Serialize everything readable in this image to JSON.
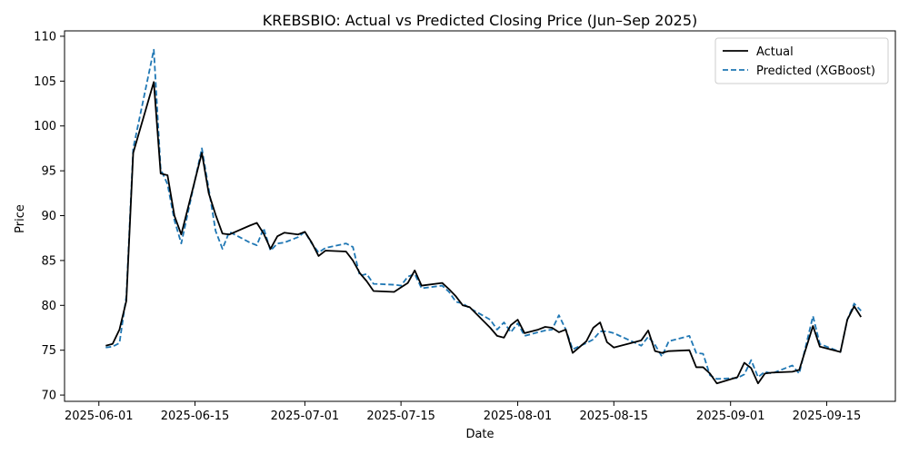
{
  "chart_data": {
    "type": "line",
    "title": "KREBSBIO: Actual vs Predicted Closing Price (Jun–Sep 2025)",
    "xlabel": "Date",
    "ylabel": "Price",
    "xlim": [
      "2025-05-27",
      "2025-09-25"
    ],
    "ylim": [
      69.3,
      110.6
    ],
    "x_ticks": [
      "2025-06-01",
      "2025-06-15",
      "2025-07-01",
      "2025-07-15",
      "2025-08-01",
      "2025-08-15",
      "2025-09-01",
      "2025-09-15"
    ],
    "y_ticks": [
      70,
      75,
      80,
      85,
      90,
      95,
      100,
      105,
      110
    ],
    "grid": false,
    "legend": "top-right",
    "series": [
      {
        "name": "Actual",
        "color": "#000000",
        "style": "solid",
        "points": [
          [
            "2025-06-02",
            75.5
          ],
          [
            "2025-06-03",
            75.7
          ],
          [
            "2025-06-04",
            77.3
          ],
          [
            "2025-06-05",
            80.5
          ],
          [
            "2025-06-06",
            97.0
          ],
          [
            "2025-06-09",
            104.9
          ],
          [
            "2025-06-10",
            94.7
          ],
          [
            "2025-06-11",
            94.5
          ],
          [
            "2025-06-12",
            90.0
          ],
          [
            "2025-06-13",
            87.9
          ],
          [
            "2025-06-16",
            97.0
          ],
          [
            "2025-06-17",
            92.5
          ],
          [
            "2025-06-18",
            90.1
          ],
          [
            "2025-06-19",
            88.0
          ],
          [
            "2025-06-20",
            87.9
          ],
          [
            "2025-06-23",
            88.9
          ],
          [
            "2025-06-24",
            89.2
          ],
          [
            "2025-06-25",
            88.0
          ],
          [
            "2025-06-26",
            86.3
          ],
          [
            "2025-06-27",
            87.7
          ],
          [
            "2025-06-28",
            88.1
          ],
          [
            "2025-06-30",
            87.9
          ],
          [
            "2025-07-01",
            88.2
          ],
          [
            "2025-07-02",
            87.0
          ],
          [
            "2025-07-03",
            85.5
          ],
          [
            "2025-07-04",
            86.1
          ],
          [
            "2025-07-07",
            86.0
          ],
          [
            "2025-07-08",
            85.0
          ],
          [
            "2025-07-09",
            83.6
          ],
          [
            "2025-07-10",
            82.7
          ],
          [
            "2025-07-11",
            81.6
          ],
          [
            "2025-07-14",
            81.5
          ],
          [
            "2025-07-15",
            82.0
          ],
          [
            "2025-07-16",
            82.5
          ],
          [
            "2025-07-17",
            83.9
          ],
          [
            "2025-07-18",
            82.2
          ],
          [
            "2025-07-21",
            82.5
          ],
          [
            "2025-07-22",
            81.8
          ],
          [
            "2025-07-23",
            81.0
          ],
          [
            "2025-07-24",
            80.0
          ],
          [
            "2025-07-25",
            79.8
          ],
          [
            "2025-07-28",
            77.5
          ],
          [
            "2025-07-29",
            76.6
          ],
          [
            "2025-07-30",
            76.4
          ],
          [
            "2025-07-31",
            77.8
          ],
          [
            "2025-08-01",
            78.4
          ],
          [
            "2025-08-02",
            76.9
          ],
          [
            "2025-08-04",
            77.3
          ],
          [
            "2025-08-05",
            77.6
          ],
          [
            "2025-08-06",
            77.5
          ],
          [
            "2025-08-07",
            77.0
          ],
          [
            "2025-08-08",
            77.3
          ],
          [
            "2025-08-09",
            74.7
          ],
          [
            "2025-08-11",
            76.0
          ],
          [
            "2025-08-12",
            77.5
          ],
          [
            "2025-08-13",
            78.1
          ],
          [
            "2025-08-14",
            75.9
          ],
          [
            "2025-08-15",
            75.3
          ],
          [
            "2025-08-19",
            76.1
          ],
          [
            "2025-08-20",
            77.2
          ],
          [
            "2025-08-21",
            74.9
          ],
          [
            "2025-08-22",
            74.7
          ],
          [
            "2025-08-23",
            74.9
          ],
          [
            "2025-08-26",
            75.0
          ],
          [
            "2025-08-27",
            73.1
          ],
          [
            "2025-08-28",
            73.1
          ],
          [
            "2025-08-29",
            72.4
          ],
          [
            "2025-08-30",
            71.3
          ],
          [
            "2025-09-02",
            72.0
          ],
          [
            "2025-09-03",
            73.6
          ],
          [
            "2025-09-04",
            73.0
          ],
          [
            "2025-09-05",
            71.3
          ],
          [
            "2025-09-06",
            72.4
          ],
          [
            "2025-09-07",
            72.5
          ],
          [
            "2025-09-10",
            72.6
          ],
          [
            "2025-09-11",
            72.8
          ],
          [
            "2025-09-13",
            77.7
          ],
          [
            "2025-09-14",
            75.4
          ],
          [
            "2025-09-17",
            74.8
          ],
          [
            "2025-09-18",
            78.4
          ],
          [
            "2025-09-19",
            79.9
          ],
          [
            "2025-09-20",
            78.7
          ]
        ]
      },
      {
        "name": "Predicted (XGBoost)",
        "color": "#1f77b4",
        "style": "dashed",
        "points": [
          [
            "2025-06-02",
            75.3
          ],
          [
            "2025-06-03",
            75.4
          ],
          [
            "2025-06-04",
            75.8
          ],
          [
            "2025-06-05",
            81.0
          ],
          [
            "2025-06-06",
            97.5
          ],
          [
            "2025-06-09",
            108.5
          ],
          [
            "2025-06-10",
            95.2
          ],
          [
            "2025-06-11",
            93.5
          ],
          [
            "2025-06-12",
            89.5
          ],
          [
            "2025-06-13",
            86.9
          ],
          [
            "2025-06-16",
            97.5
          ],
          [
            "2025-06-17",
            93.0
          ],
          [
            "2025-06-18",
            88.3
          ],
          [
            "2025-06-19",
            86.3
          ],
          [
            "2025-06-20",
            88.2
          ],
          [
            "2025-06-23",
            87.0
          ],
          [
            "2025-06-24",
            86.7
          ],
          [
            "2025-06-25",
            88.6
          ],
          [
            "2025-06-26",
            86.1
          ],
          [
            "2025-06-27",
            86.9
          ],
          [
            "2025-06-28",
            87.0
          ],
          [
            "2025-06-30",
            87.6
          ],
          [
            "2025-07-01",
            88.2
          ],
          [
            "2025-07-02",
            86.9
          ],
          [
            "2025-07-03",
            85.9
          ],
          [
            "2025-07-04",
            86.4
          ],
          [
            "2025-07-07",
            86.9
          ],
          [
            "2025-07-08",
            86.5
          ],
          [
            "2025-07-09",
            83.3
          ],
          [
            "2025-07-10",
            83.5
          ],
          [
            "2025-07-11",
            82.4
          ],
          [
            "2025-07-14",
            82.3
          ],
          [
            "2025-07-15",
            82.2
          ],
          [
            "2025-07-16",
            83.2
          ],
          [
            "2025-07-17",
            83.5
          ],
          [
            "2025-07-18",
            81.9
          ],
          [
            "2025-07-21",
            82.2
          ],
          [
            "2025-07-22",
            81.5
          ],
          [
            "2025-07-23",
            80.4
          ],
          [
            "2025-07-24",
            80.2
          ],
          [
            "2025-07-25",
            79.7
          ],
          [
            "2025-07-28",
            78.4
          ],
          [
            "2025-07-29",
            77.3
          ],
          [
            "2025-07-30",
            78.1
          ],
          [
            "2025-07-31",
            77.0
          ],
          [
            "2025-08-01",
            78.0
          ],
          [
            "2025-08-02",
            76.6
          ],
          [
            "2025-08-04",
            77.0
          ],
          [
            "2025-08-05",
            77.2
          ],
          [
            "2025-08-06",
            77.3
          ],
          [
            "2025-08-07",
            78.9
          ],
          [
            "2025-08-08",
            77.3
          ],
          [
            "2025-08-09",
            75.1
          ],
          [
            "2025-08-11",
            75.8
          ],
          [
            "2025-08-12",
            76.2
          ],
          [
            "2025-08-13",
            77.1
          ],
          [
            "2025-08-14",
            77.1
          ],
          [
            "2025-08-15",
            76.9
          ],
          [
            "2025-08-19",
            75.5
          ],
          [
            "2025-08-20",
            76.5
          ],
          [
            "2025-08-21",
            75.6
          ],
          [
            "2025-08-22",
            74.3
          ],
          [
            "2025-08-23",
            76.0
          ],
          [
            "2025-08-26",
            76.6
          ],
          [
            "2025-08-27",
            74.7
          ],
          [
            "2025-08-28",
            74.6
          ],
          [
            "2025-08-29",
            72.2
          ],
          [
            "2025-08-30",
            71.8
          ],
          [
            "2025-09-02",
            71.9
          ],
          [
            "2025-09-03",
            72.3
          ],
          [
            "2025-09-04",
            73.9
          ],
          [
            "2025-09-05",
            72.0
          ],
          [
            "2025-09-06",
            72.6
          ],
          [
            "2025-09-07",
            72.4
          ],
          [
            "2025-09-10",
            73.3
          ],
          [
            "2025-09-11",
            72.4
          ],
          [
            "2025-09-13",
            78.8
          ],
          [
            "2025-09-14",
            75.7
          ],
          [
            "2025-09-17",
            74.8
          ],
          [
            "2025-09-18",
            78.4
          ],
          [
            "2025-09-19",
            80.2
          ],
          [
            "2025-09-20",
            79.4
          ]
        ]
      }
    ]
  }
}
